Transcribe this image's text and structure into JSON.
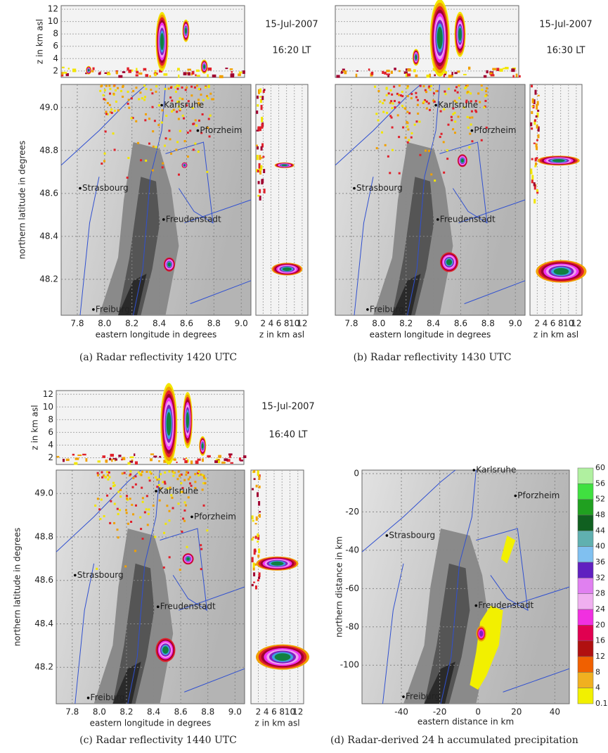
{
  "panels": [
    {
      "caption": "(a) Radar reflectivity 1420 UTC",
      "date": "15-Jul-2007",
      "time": "16:20 LT",
      "top_ylabel": "z in km asl",
      "top_yticks": [
        "12",
        "10",
        "8",
        "6",
        "4",
        "2"
      ],
      "map_ylabel": "northern latitude in degrees",
      "map_yticks": [
        "49.0",
        "48.8",
        "48.6",
        "48.4",
        "48.2"
      ],
      "map_xlabel": "eastern longitude in degrees",
      "map_xticks": [
        "7.8",
        "8.0",
        "8.2",
        "8.4",
        "8.6",
        "8.8",
        "9.0"
      ],
      "side_xlabel": "z in km asl",
      "side_xticks": [
        "2",
        "4",
        "6",
        "8",
        "10",
        "12"
      ],
      "cities": [
        "Karlsruhe",
        "Pforzheim",
        "Strasbourg",
        "Freudenstadt",
        "Freiburg"
      ]
    },
    {
      "caption": "(b) Radar reflectivity 1430 UTC",
      "date": "15-Jul-2007",
      "time": "16:30 LT",
      "map_xlabel": "eastern longitude in degrees",
      "map_xticks": [
        "7.8",
        "8.0",
        "8.2",
        "8.4",
        "8.6",
        "8.8",
        "9.0"
      ],
      "side_xlabel": "z in km asl",
      "side_xticks": [
        "2",
        "4",
        "6",
        "8",
        "10",
        "12"
      ],
      "cities": [
        "Karlsruhe",
        "Pforzheim",
        "Strasbourg",
        "Freudenstadt",
        "Freiburg"
      ]
    },
    {
      "caption": "(c) Radar reflectivity 1440 UTC",
      "date": "15-Jul-2007",
      "time": "16:40 LT",
      "top_ylabel": "z in km asl",
      "top_yticks": [
        "12",
        "10",
        "8",
        "6",
        "4",
        "2"
      ],
      "map_ylabel": "northern latitude in degrees",
      "map_yticks": [
        "49.0",
        "48.8",
        "48.6",
        "48.4",
        "48.2"
      ],
      "map_xlabel": "eastern longitude in degrees",
      "map_xticks": [
        "7.8",
        "8.0",
        "8.2",
        "8.4",
        "8.6",
        "8.8",
        "9.0"
      ],
      "side_xlabel": "z in km asl",
      "side_xticks": [
        "2",
        "4",
        "6",
        "8",
        "10",
        "12"
      ],
      "cities": [
        "Karlsruhe",
        "Pforzheim",
        "Strasbourg",
        "Freudenstadt",
        "Freiburg"
      ]
    }
  ],
  "panel_d": {
    "caption": "(d) Radar-derived 24 h accumulated precipitation",
    "xlabel": "eastern distance in km",
    "ylabel": "northern distance in km",
    "xticks": [
      "-40",
      "-20",
      "0",
      "20",
      "40"
    ],
    "yticks": [
      "0",
      "-20",
      "-40",
      "-60",
      "-80",
      "-100"
    ],
    "cities": [
      "Karlsruhe",
      "Pforzheim",
      "Strasbourg",
      "Freudenstadt",
      "Freiburg"
    ],
    "colorbar": [
      "60",
      "56",
      "52",
      "48",
      "44",
      "40",
      "36",
      "32",
      "28",
      "24",
      "20",
      "16",
      "12",
      "8",
      "4",
      "0.1"
    ]
  }
}
